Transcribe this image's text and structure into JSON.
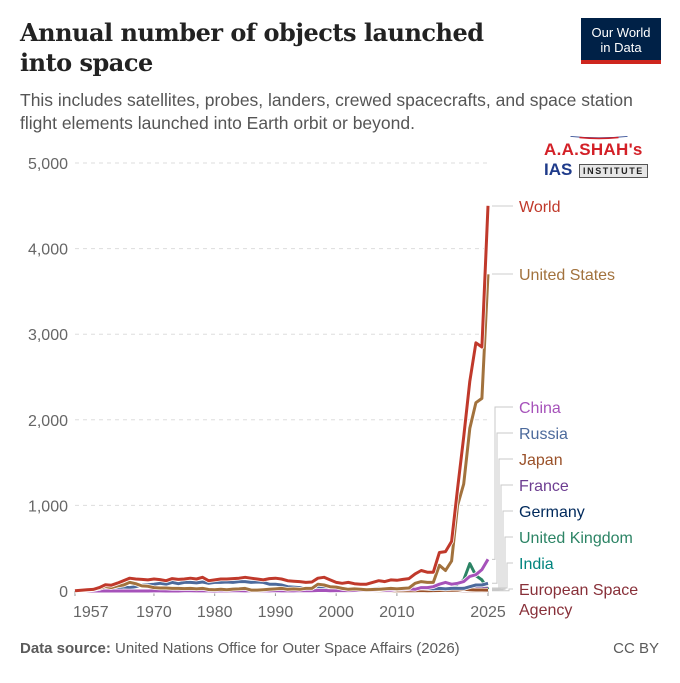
{
  "header": {
    "title": "Annual number of objects launched into space",
    "subtitle": "This includes satellites, probes, landers, crewed spacecrafts, and space station flight elements launched into Earth orbit or beyond.",
    "logo_line1": "Our World",
    "logo_line2": "in Data"
  },
  "watermark": {
    "line1": "A.A.SHAH's",
    "line2": "IAS",
    "line2_suffix": "INSTITUTE"
  },
  "footer": {
    "source_label": "Data source:",
    "source_text": "United Nations Office for Outer Space Affairs (2026)",
    "license": "CC BY"
  },
  "chart_data": {
    "type": "line",
    "title": "Annual number of objects launched into space",
    "xlabel": "",
    "ylabel": "",
    "xlim": [
      1957,
      2025
    ],
    "ylim": [
      0,
      5000
    ],
    "grid": true,
    "legend_placement": "right (line-end labels)",
    "x_ticks": [
      1957,
      1970,
      1980,
      1990,
      2000,
      2010,
      2025
    ],
    "y_ticks": [
      0,
      1000,
      2000,
      3000,
      4000,
      5000
    ],
    "y_tick_labels": [
      "0",
      "1,000",
      "2,000",
      "3,000",
      "4,000",
      "5,000"
    ],
    "x": [
      1957,
      1958,
      1959,
      1960,
      1961,
      1962,
      1963,
      1964,
      1965,
      1966,
      1967,
      1968,
      1969,
      1970,
      1971,
      1972,
      1973,
      1974,
      1975,
      1976,
      1977,
      1978,
      1979,
      1980,
      1981,
      1982,
      1983,
      1984,
      1985,
      1986,
      1987,
      1988,
      1989,
      1990,
      1991,
      1992,
      1993,
      1994,
      1995,
      1996,
      1997,
      1998,
      1999,
      2000,
      2001,
      2002,
      2003,
      2004,
      2005,
      2006,
      2007,
      2008,
      2009,
      2010,
      2011,
      2012,
      2013,
      2014,
      2015,
      2016,
      2017,
      2018,
      2019,
      2020,
      2021,
      2022,
      2023,
      2024,
      2025
    ],
    "series": [
      {
        "name": "World",
        "color": "#c0392b",
        "values": [
          2,
          8,
          14,
          19,
          40,
          72,
          68,
          92,
          120,
          150,
          140,
          136,
          130,
          140,
          133,
          120,
          145,
          135,
          140,
          150,
          140,
          160,
          120,
          130,
          140,
          140,
          145,
          150,
          160,
          150,
          140,
          130,
          145,
          150,
          140,
          120,
          115,
          110,
          100,
          105,
          150,
          160,
          130,
          100,
          90,
          100,
          85,
          80,
          80,
          100,
          120,
          110,
          130,
          125,
          135,
          145,
          200,
          240,
          220,
          220,
          450,
          460,
          580,
          1200,
          1800,
          2450,
          2900,
          2850,
          4500
        ]
      },
      {
        "name": "United States",
        "color": "#a2723d",
        "values": [
          0,
          5,
          10,
          16,
          29,
          52,
          40,
          60,
          70,
          100,
          85,
          60,
          55,
          40,
          35,
          35,
          30,
          30,
          28,
          30,
          25,
          30,
          18,
          15,
          20,
          15,
          22,
          25,
          30,
          10,
          10,
          15,
          20,
          25,
          30,
          20,
          25,
          20,
          30,
          30,
          80,
          70,
          50,
          45,
          30,
          20,
          25,
          20,
          15,
          18,
          20,
          25,
          30,
          25,
          30,
          35,
          90,
          110,
          100,
          100,
          300,
          240,
          350,
          1000,
          1250,
          1900,
          2200,
          2250,
          3700
        ]
      },
      {
        "name": "China",
        "color": "#a652ba",
        "values": [
          0,
          0,
          0,
          0,
          0,
          0,
          0,
          0,
          0,
          0,
          0,
          0,
          0,
          1,
          1,
          0,
          0,
          0,
          3,
          3,
          1,
          1,
          1,
          0,
          3,
          1,
          2,
          2,
          1,
          2,
          2,
          4,
          1,
          5,
          1,
          4,
          1,
          5,
          2,
          4,
          6,
          7,
          2,
          5,
          6,
          5,
          6,
          10,
          7,
          9,
          12,
          10,
          10,
          19,
          20,
          25,
          20,
          40,
          40,
          50,
          80,
          100,
          80,
          90,
          110,
          170,
          190,
          250,
          370
        ]
      },
      {
        "name": "Russia",
        "color": "#4c6a9c",
        "values": [
          0,
          2,
          2,
          3,
          8,
          15,
          20,
          28,
          45,
          40,
          50,
          70,
          72,
          80,
          90,
          80,
          100,
          85,
          100,
          100,
          95,
          105,
          90,
          100,
          100,
          105,
          100,
          110,
          110,
          100,
          105,
          100,
          80,
          80,
          70,
          50,
          45,
          40,
          30,
          25,
          35,
          30,
          25,
          30,
          20,
          25,
          20,
          25,
          20,
          25,
          30,
          25,
          25,
          30,
          30,
          30,
          30,
          35,
          30,
          25,
          30,
          25,
          30,
          30,
          30,
          50,
          70,
          70,
          90
        ]
      },
      {
        "name": "Japan",
        "color": "#9a5129",
        "values": [
          0,
          0,
          0,
          0,
          0,
          0,
          0,
          0,
          0,
          0,
          0,
          0,
          0,
          1,
          2,
          1,
          0,
          1,
          3,
          1,
          2,
          4,
          2,
          2,
          3,
          3,
          3,
          3,
          2,
          2,
          3,
          3,
          3,
          4,
          2,
          3,
          2,
          3,
          2,
          3,
          3,
          2,
          1,
          1,
          3,
          4,
          2,
          1,
          4,
          3,
          3,
          2,
          4,
          3,
          4,
          3,
          3,
          6,
          3,
          5,
          6,
          10,
          8,
          10,
          20,
          15,
          12,
          12,
          10
        ]
      },
      {
        "name": "France",
        "color": "#6d3e91",
        "values": [
          0,
          0,
          0,
          0,
          0,
          0,
          0,
          0,
          1,
          1,
          2,
          0,
          0,
          2,
          1,
          1,
          0,
          1,
          3,
          0,
          1,
          0,
          0,
          0,
          1,
          0,
          1,
          1,
          0,
          2,
          1,
          1,
          2,
          2,
          1,
          2,
          1,
          1,
          2,
          1,
          2,
          2,
          1,
          1,
          1,
          2,
          2,
          1,
          1,
          1,
          2,
          1,
          2,
          1,
          2,
          1,
          2,
          2,
          3,
          5,
          8,
          10,
          15,
          20,
          40,
          45,
          50,
          30,
          30
        ]
      },
      {
        "name": "Germany",
        "color": "#00295b",
        "values": [
          0,
          0,
          0,
          0,
          0,
          0,
          0,
          0,
          0,
          0,
          0,
          0,
          1,
          1,
          0,
          0,
          1,
          1,
          1,
          0,
          0,
          1,
          0,
          0,
          1,
          0,
          1,
          0,
          1,
          1,
          1,
          1,
          2,
          2,
          1,
          1,
          1,
          1,
          2,
          1,
          1,
          1,
          1,
          2,
          2,
          2,
          3,
          2,
          3,
          3,
          3,
          3,
          4,
          4,
          5,
          5,
          6,
          6,
          4,
          5,
          5,
          8,
          10,
          10,
          15,
          12,
          14,
          12,
          15
        ]
      },
      {
        "name": "United Kingdom",
        "color": "#2c8465",
        "values": [
          0,
          0,
          0,
          0,
          0,
          1,
          3,
          4,
          4,
          5,
          5,
          5,
          5,
          5,
          1,
          0,
          0,
          1,
          0,
          0,
          0,
          1,
          1,
          0,
          1,
          0,
          1,
          1,
          1,
          0,
          0,
          1,
          2,
          1,
          1,
          1,
          1,
          1,
          1,
          1,
          2,
          2,
          2,
          3,
          2,
          2,
          3,
          2,
          2,
          3,
          2,
          3,
          3,
          3,
          4,
          4,
          5,
          6,
          6,
          8,
          10,
          20,
          25,
          80,
          130,
          320,
          180,
          130,
          20
        ]
      },
      {
        "name": "India",
        "color": "#00847e",
        "values": [
          0,
          0,
          0,
          0,
          0,
          0,
          0,
          0,
          0,
          0,
          0,
          0,
          0,
          0,
          0,
          0,
          0,
          0,
          1,
          0,
          0,
          0,
          1,
          1,
          1,
          0,
          1,
          0,
          0,
          0,
          0,
          1,
          0,
          1,
          0,
          1,
          1,
          1,
          1,
          1,
          1,
          1,
          1,
          1,
          2,
          2,
          2,
          3,
          3,
          3,
          4,
          4,
          4,
          5,
          6,
          6,
          6,
          6,
          8,
          10,
          10,
          12,
          15,
          10,
          15,
          20,
          30,
          40,
          35
        ]
      },
      {
        "name": "European Space Agency",
        "color": "#883039",
        "values": [
          0,
          0,
          0,
          0,
          0,
          0,
          0,
          0,
          0,
          0,
          0,
          0,
          0,
          0,
          0,
          0,
          0,
          0,
          1,
          0,
          1,
          1,
          0,
          1,
          1,
          0,
          1,
          1,
          1,
          0,
          1,
          1,
          1,
          1,
          1,
          1,
          1,
          1,
          2,
          1,
          1,
          1,
          1,
          1,
          1,
          2,
          1,
          1,
          2,
          2,
          1,
          2,
          3,
          2,
          2,
          2,
          2,
          3,
          3,
          2,
          3,
          2,
          3,
          2,
          2,
          4,
          3,
          3,
          3
        ]
      }
    ]
  }
}
